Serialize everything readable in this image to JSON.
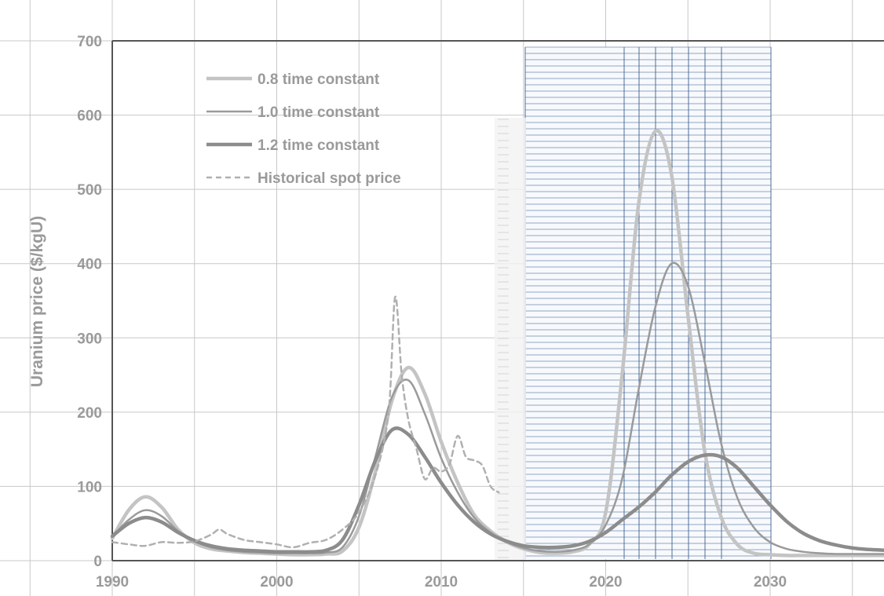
{
  "chart_data": {
    "type": "line",
    "title": "",
    "xlabel": "",
    "ylabel": "Uranium price ($/kgU)",
    "xlim": [
      1990,
      2037
    ],
    "ylim": [
      0,
      700
    ],
    "x_ticks": [
      1990,
      2000,
      2010,
      2020,
      2030
    ],
    "y_ticks": [
      0,
      100,
      200,
      300,
      400,
      500,
      600,
      700
    ],
    "grid": true,
    "legend_position": "top-left",
    "series": [
      {
        "name": "0.8 time constant",
        "color": "#c4c4c4",
        "dash": "solid",
        "points": [
          [
            1990,
            30
          ],
          [
            1991,
            68
          ],
          [
            1992,
            86
          ],
          [
            1993,
            72
          ],
          [
            1994,
            42
          ],
          [
            1995,
            24
          ],
          [
            1996,
            16
          ],
          [
            1997,
            13
          ],
          [
            1998,
            11
          ],
          [
            1999,
            10
          ],
          [
            2000,
            9
          ],
          [
            2001,
            8
          ],
          [
            2002,
            8
          ],
          [
            2003,
            9
          ],
          [
            2004,
            13
          ],
          [
            2005,
            45
          ],
          [
            2006,
            120
          ],
          [
            2007,
            215
          ],
          [
            2008,
            260
          ],
          [
            2009,
            225
          ],
          [
            2010,
            160
          ],
          [
            2011,
            105
          ],
          [
            2012,
            62
          ],
          [
            2013,
            40
          ],
          [
            2014,
            25
          ],
          [
            2015,
            16
          ],
          [
            2016,
            11
          ],
          [
            2017,
            10
          ],
          [
            2018,
            12
          ],
          [
            2019,
            22
          ],
          [
            2020,
            65
          ],
          [
            2021,
            250
          ],
          [
            2022,
            480
          ],
          [
            2023,
            578
          ],
          [
            2024,
            520
          ],
          [
            2025,
            330
          ],
          [
            2026,
            150
          ],
          [
            2027,
            60
          ],
          [
            2028,
            22
          ],
          [
            2029,
            10
          ],
          [
            2030,
            8
          ],
          [
            2031,
            7
          ],
          [
            2032,
            7
          ],
          [
            2033,
            7
          ],
          [
            2034,
            7
          ],
          [
            2035,
            7
          ],
          [
            2037,
            7
          ]
        ]
      },
      {
        "name": "1.0 time constant",
        "color": "#9a9a9a",
        "dash": "solid",
        "points": [
          [
            1990,
            32
          ],
          [
            1991,
            55
          ],
          [
            1992,
            68
          ],
          [
            1993,
            60
          ],
          [
            1994,
            40
          ],
          [
            1995,
            26
          ],
          [
            1996,
            18
          ],
          [
            1997,
            14
          ],
          [
            1998,
            12
          ],
          [
            1999,
            11
          ],
          [
            2000,
            10
          ],
          [
            2001,
            10
          ],
          [
            2002,
            10
          ],
          [
            2003,
            11
          ],
          [
            2004,
            18
          ],
          [
            2005,
            60
          ],
          [
            2006,
            140
          ],
          [
            2007,
            220
          ],
          [
            2008,
            243
          ],
          [
            2009,
            198
          ],
          [
            2010,
            138
          ],
          [
            2011,
            92
          ],
          [
            2012,
            58
          ],
          [
            2013,
            38
          ],
          [
            2014,
            25
          ],
          [
            2015,
            17
          ],
          [
            2016,
            13
          ],
          [
            2017,
            12
          ],
          [
            2018,
            14
          ],
          [
            2019,
            22
          ],
          [
            2020,
            48
          ],
          [
            2021,
            110
          ],
          [
            2022,
            230
          ],
          [
            2023,
            340
          ],
          [
            2024,
            400
          ],
          [
            2025,
            370
          ],
          [
            2026,
            270
          ],
          [
            2027,
            160
          ],
          [
            2028,
            85
          ],
          [
            2029,
            45
          ],
          [
            2030,
            25
          ],
          [
            2031,
            16
          ],
          [
            2032,
            12
          ],
          [
            2033,
            10
          ],
          [
            2034,
            9
          ],
          [
            2035,
            9
          ],
          [
            2037,
            9
          ]
        ]
      },
      {
        "name": "1.2 time constant",
        "color": "#8c8c8c",
        "dash": "solid",
        "points": [
          [
            1990,
            33
          ],
          [
            1991,
            50
          ],
          [
            1992,
            58
          ],
          [
            1993,
            52
          ],
          [
            1994,
            38
          ],
          [
            1995,
            27
          ],
          [
            1996,
            20
          ],
          [
            1997,
            16
          ],
          [
            1998,
            14
          ],
          [
            1999,
            13
          ],
          [
            2000,
            12
          ],
          [
            2001,
            12
          ],
          [
            2002,
            12
          ],
          [
            2003,
            14
          ],
          [
            2004,
            28
          ],
          [
            2005,
            75
          ],
          [
            2006,
            135
          ],
          [
            2007,
            176
          ],
          [
            2008,
            170
          ],
          [
            2009,
            140
          ],
          [
            2010,
            105
          ],
          [
            2011,
            75
          ],
          [
            2012,
            52
          ],
          [
            2013,
            36
          ],
          [
            2014,
            26
          ],
          [
            2015,
            20
          ],
          [
            2016,
            18
          ],
          [
            2017,
            18
          ],
          [
            2018,
            20
          ],
          [
            2019,
            26
          ],
          [
            2020,
            38
          ],
          [
            2021,
            55
          ],
          [
            2022,
            72
          ],
          [
            2023,
            92
          ],
          [
            2024,
            115
          ],
          [
            2025,
            133
          ],
          [
            2026,
            142
          ],
          [
            2027,
            140
          ],
          [
            2028,
            125
          ],
          [
            2029,
            100
          ],
          [
            2030,
            75
          ],
          [
            2031,
            53
          ],
          [
            2032,
            37
          ],
          [
            2033,
            27
          ],
          [
            2034,
            21
          ],
          [
            2035,
            17
          ],
          [
            2036,
            15
          ],
          [
            2037,
            14
          ]
        ]
      },
      {
        "name": "Historical spot price",
        "color": "#b0b0b0",
        "dash": "dashed",
        "points": [
          [
            1990,
            25
          ],
          [
            1991,
            22
          ],
          [
            1992,
            20
          ],
          [
            1993,
            25
          ],
          [
            1994,
            24
          ],
          [
            1995,
            26
          ],
          [
            1996,
            35
          ],
          [
            1996.5,
            42
          ],
          [
            1997,
            36
          ],
          [
            1998,
            28
          ],
          [
            1999,
            25
          ],
          [
            2000,
            22
          ],
          [
            2001,
            18
          ],
          [
            2002,
            24
          ],
          [
            2003,
            28
          ],
          [
            2004,
            42
          ],
          [
            2005,
            65
          ],
          [
            2006,
            115
          ],
          [
            2006.8,
            200
          ],
          [
            2007.2,
            355
          ],
          [
            2007.6,
            250
          ],
          [
            2008,
            190
          ],
          [
            2008.5,
            150
          ],
          [
            2009,
            110
          ],
          [
            2009.5,
            125
          ],
          [
            2010,
            120
          ],
          [
            2010.5,
            130
          ],
          [
            2011,
            168
          ],
          [
            2011.5,
            140
          ],
          [
            2012,
            135
          ],
          [
            2012.5,
            128
          ],
          [
            2013,
            100
          ],
          [
            2013.5,
            92
          ]
        ]
      }
    ]
  }
}
